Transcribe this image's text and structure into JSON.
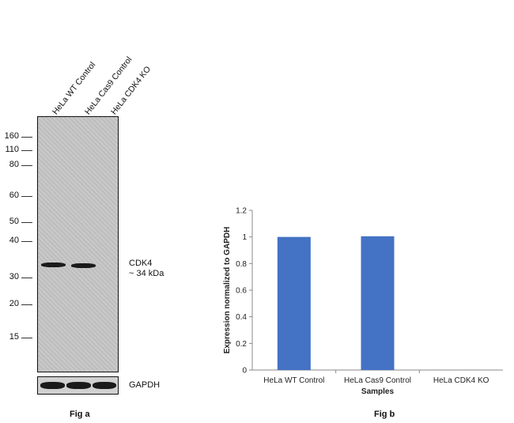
{
  "fig_a": {
    "caption": "Fig a",
    "lanes": [
      "HeLa WT Control",
      "HeLa Cas9 Control",
      "HeLa CDK4 KO"
    ],
    "markers": [
      {
        "label": "160",
        "kda": 160
      },
      {
        "label": "110",
        "kda": 110
      },
      {
        "label": "80",
        "kda": 80
      },
      {
        "label": "60",
        "kda": 60
      },
      {
        "label": "50",
        "kda": 50
      },
      {
        "label": "40",
        "kda": 40
      },
      {
        "label": "30",
        "kda": 30
      },
      {
        "label": "20",
        "kda": 20
      },
      {
        "label": "15",
        "kda": 15
      }
    ],
    "target_label": "CDK4",
    "target_size": "~ 34 kDa",
    "loading_control": "GAPDH"
  },
  "chart_data": {
    "type": "bar",
    "caption": "Fig b",
    "title": "",
    "categories": [
      "HeLa WT Control",
      "HeLa Cas9 Control",
      "HeLa CDK4 KO"
    ],
    "values": [
      1.0,
      1.005,
      0.0
    ],
    "xlabel": "Samples",
    "ylabel": "Expression normalized to GAPDH",
    "ylim": [
      0,
      1.2
    ],
    "yticks": [
      "0",
      "0.2",
      "0.4",
      "0.6",
      "0.8",
      "1",
      "1.2"
    ],
    "bar_color": "#4472C4",
    "grid": false,
    "legend": "none"
  }
}
